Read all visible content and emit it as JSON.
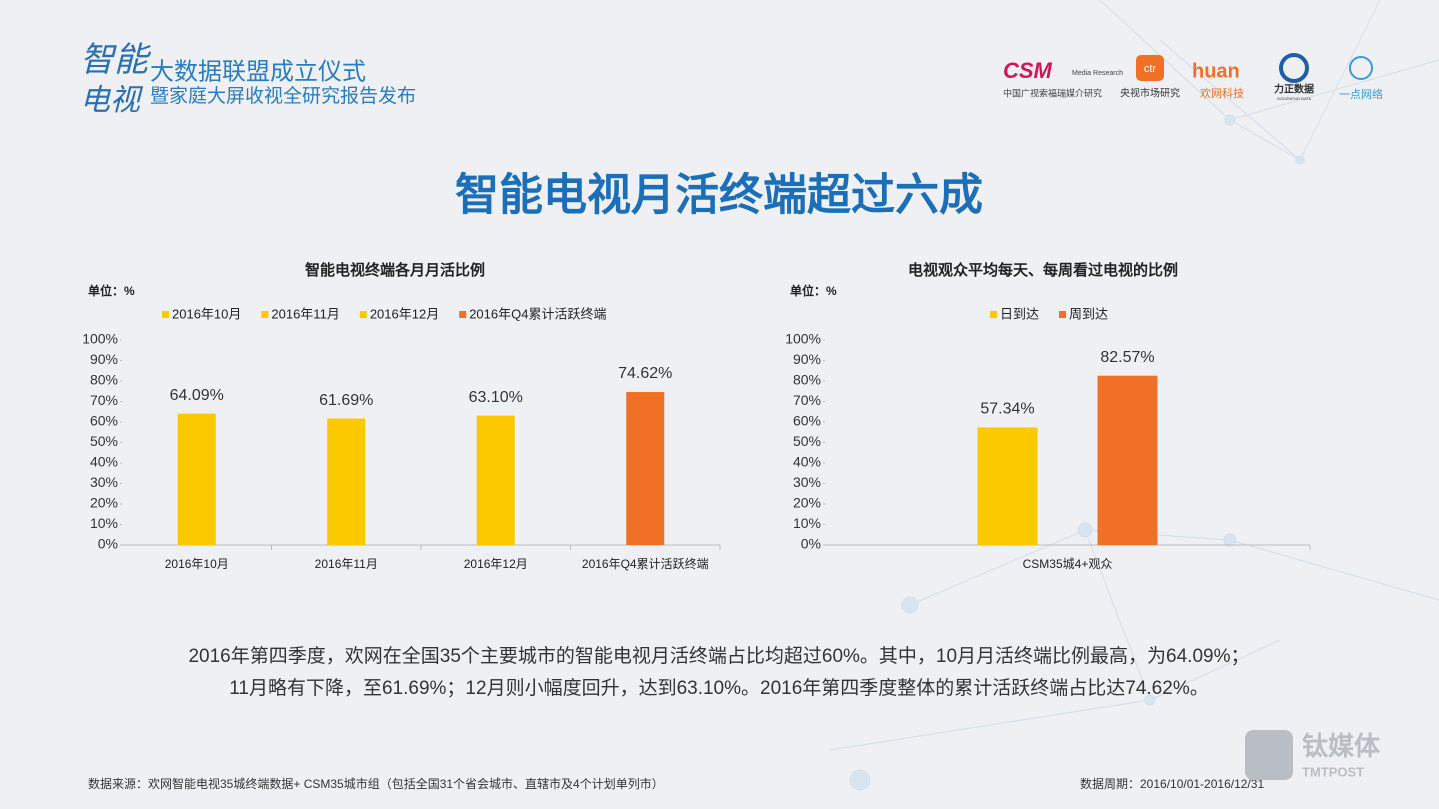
{
  "header": {
    "logo": [
      "智能",
      "电视"
    ],
    "event_lines": [
      "大数据联盟成立仪式",
      "暨家庭大屏收视全研究报告发布"
    ],
    "partners": [
      "CSM",
      "Media Research",
      "中国广视索福瑞媒介研究",
      "ctr",
      "央视市场研究",
      "huan",
      "欢网科技",
      "力正数据",
      "GOUZHENG DATA",
      "一点网络"
    ]
  },
  "title": "智能电视月活终端超过六成",
  "chart_data": [
    {
      "type": "bar",
      "title": "智能电视终端各月月活比例",
      "unit": "单位：%",
      "categories": [
        "2016年10月",
        "2016年11月",
        "2016年12月",
        "2016年Q4累计活跃终端"
      ],
      "series": [
        {
          "name": "2016年10月",
          "color": "#fcc800",
          "values": [
            64.09,
            null,
            null,
            null
          ],
          "value_labels": [
            "64.09%",
            null,
            null,
            null
          ]
        },
        {
          "name": "2016年11月",
          "color": "#fcc800",
          "values": [
            null,
            61.69,
            null,
            null
          ],
          "value_labels": [
            null,
            "61.69%",
            null,
            null
          ]
        },
        {
          "name": "2016年12月",
          "color": "#fcc800",
          "values": [
            null,
            null,
            63.1,
            null
          ],
          "value_labels": [
            null,
            null,
            "63.10%",
            null
          ]
        },
        {
          "name": "2016年Q4累计活跃终端",
          "color": "#f07125",
          "values": [
            null,
            null,
            null,
            74.62
          ],
          "value_labels": [
            null,
            null,
            null,
            "74.62%"
          ]
        }
      ],
      "ylim": [
        0,
        100
      ],
      "yticks": [
        {
          "value": 0,
          "label": "0%"
        },
        {
          "value": 10,
          "label": "10%"
        },
        {
          "value": 20,
          "label": "20%"
        },
        {
          "value": 30,
          "label": "30%"
        },
        {
          "value": 40,
          "label": "40%"
        },
        {
          "value": 50,
          "label": "50%"
        },
        {
          "value": 60,
          "label": "60%"
        },
        {
          "value": 70,
          "label": "70%"
        },
        {
          "value": 80,
          "label": "80%"
        },
        {
          "value": 90,
          "label": "90%"
        },
        {
          "value": 100,
          "label": "100%"
        }
      ],
      "legend": "top"
    },
    {
      "type": "bar",
      "title": "电视观众平均每天、每周看过电视的比例",
      "unit": "单位：%",
      "categories": [
        "CSM35城4+观众"
      ],
      "series": [
        {
          "name": "日到达",
          "color": "#fcc800",
          "values": [
            57.34
          ],
          "value_labels": [
            "57.34%"
          ]
        },
        {
          "name": "周到达",
          "color": "#f07125",
          "values": [
            82.57
          ],
          "value_labels": [
            "82.57%"
          ]
        }
      ],
      "ylim": [
        0,
        100
      ],
      "yticks": [
        {
          "value": 0,
          "label": "0%"
        },
        {
          "value": 10,
          "label": "10%"
        },
        {
          "value": 20,
          "label": "20%"
        },
        {
          "value": 30,
          "label": "30%"
        },
        {
          "value": 40,
          "label": "40%"
        },
        {
          "value": 50,
          "label": "50%"
        },
        {
          "value": 60,
          "label": "60%"
        },
        {
          "value": 70,
          "label": "70%"
        },
        {
          "value": 80,
          "label": "80%"
        },
        {
          "value": 90,
          "label": "90%"
        },
        {
          "value": 100,
          "label": "100%"
        }
      ],
      "legend": "top"
    }
  ],
  "summary": [
    "2016年第四季度，欢网在全国35个主要城市的智能电视月活终端占比均超过60%。其中，10月月活终端比例最高，为64.09%；",
    "11月略有下降，至61.69%；12月则小幅度回升，达到63.10%。2016年第四季度整体的累计活跃终端占比达74.62%。"
  ],
  "footer": {
    "source": "数据来源：欢网智能电视35城终端数据+ CSM35城市组（包括全国31个省会城市、直辖市及4个计划单列市）",
    "period": "数据周期：2016/10/01-2016/12/31",
    "watermark": [
      "钛媒体",
      "TMTPOST"
    ]
  }
}
